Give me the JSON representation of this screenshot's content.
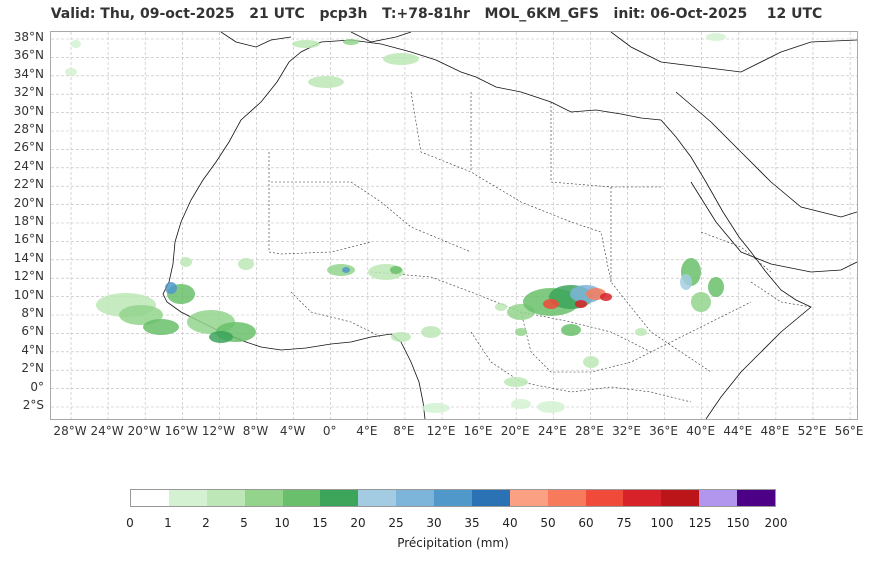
{
  "title": "Valid: Thu, 09-oct-2025   21 UTC   pcp3h   T:+78-81hr   MOL_6KM_GFS   init: 06-Oct-2025    12 UTC",
  "lat_labels": [
    "38°N",
    "36°N",
    "34°N",
    "32°N",
    "30°N",
    "28°N",
    "26°N",
    "24°N",
    "22°N",
    "20°N",
    "18°N",
    "16°N",
    "14°N",
    "12°N",
    "10°N",
    "8°N",
    "6°N",
    "4°N",
    "2°N",
    "0°",
    "2°S"
  ],
  "lon_labels": [
    "28°W",
    "24°W",
    "20°W",
    "16°W",
    "12°W",
    "8°W",
    "4°W",
    "0°",
    "4°E",
    "8°E",
    "12°E",
    "16°E",
    "20°E",
    "24°E",
    "28°E",
    "32°E",
    "36°E",
    "40°E",
    "44°E",
    "48°E",
    "52°E",
    "56°E"
  ],
  "colorbar": {
    "label": "Précipitation (mm)",
    "ticks": [
      "0",
      "1",
      "2",
      "5",
      "10",
      "15",
      "20",
      "25",
      "30",
      "35",
      "40",
      "50",
      "60",
      "75",
      "100",
      "125",
      "150",
      "200"
    ],
    "colors": [
      "#ffffff",
      "#d4f2d2",
      "#bde7b6",
      "#93d38c",
      "#69bf6b",
      "#3ca55a",
      "#a3cce3",
      "#7db4da",
      "#4f98c9",
      "#2b72b5",
      "#fca083",
      "#f87a5c",
      "#f04a3a",
      "#d72229",
      "#bb1419",
      "#b296ed",
      "#4b0086"
    ]
  },
  "map": {
    "lat_range": [
      -3,
      38.5
    ],
    "lon_range": [
      -30,
      57.5
    ],
    "grid": true
  }
}
